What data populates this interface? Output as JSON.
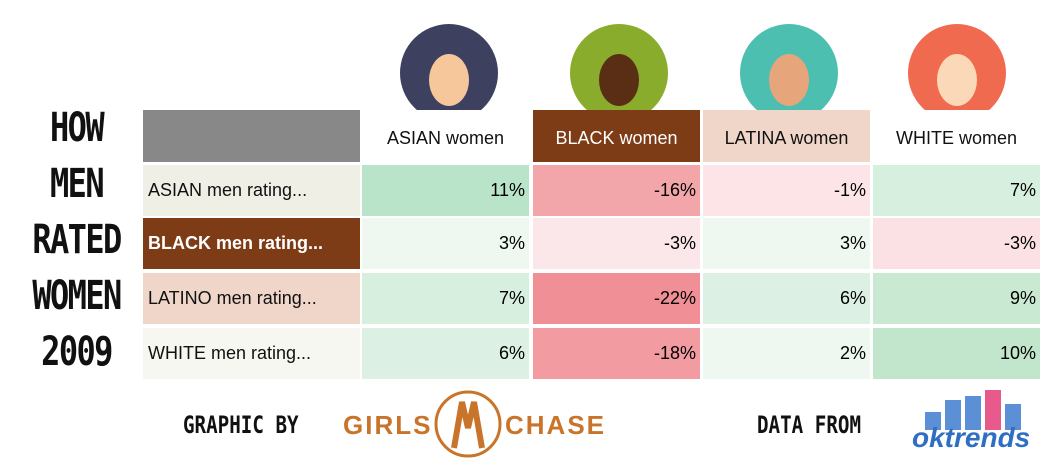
{
  "title": {
    "lines": [
      "HOW",
      "MEN",
      "RATED",
      "WOMEN",
      "2009"
    ]
  },
  "table": {
    "columns": [
      {
        "label": "ASIAN women",
        "bg": "#ffffff",
        "fg": "#111111"
      },
      {
        "label": "BLACK women",
        "bg": "#7d3b16",
        "fg": "#ffffff"
      },
      {
        "label": "LATINA women",
        "bg": "#f0d6c9",
        "fg": "#111111"
      },
      {
        "label": "WHITE women",
        "bg": "#ffffff",
        "fg": "#111111"
      }
    ],
    "rows": [
      {
        "label": "ASIAN men rating...",
        "bg": "#f0efe6",
        "fg": "#111111",
        "cells": [
          "11%",
          "-16%",
          "-1%",
          "7%"
        ],
        "colors": [
          "#b9e4c9",
          "#f2a6a9",
          "#fce4e7",
          "#d7efde"
        ]
      },
      {
        "label": "BLACK men rating...",
        "bg": "#7d3b16",
        "fg": "#ffffff",
        "cells": [
          "3%",
          "-3%",
          "3%",
          "-3%"
        ],
        "colors": [
          "#eef7f0",
          "#fbe6e9",
          "#eef7f0",
          "#fbe0e4"
        ]
      },
      {
        "label": "LATINO men rating...",
        "bg": "#f0d6c9",
        "fg": "#111111",
        "cells": [
          "7%",
          "-22%",
          "6%",
          "9%"
        ],
        "colors": [
          "#d7efde",
          "#f08f95",
          "#dcf1e3",
          "#c9e9d3"
        ]
      },
      {
        "label": "WHITE men rating...",
        "bg": "#f5f7f0",
        "fg": "#111111",
        "cells": [
          "6%",
          "-18%",
          "2%",
          "10%"
        ],
        "colors": [
          "#dcf1e3",
          "#f29ca1",
          "#eef7f0",
          "#c1e6cc"
        ]
      }
    ]
  },
  "footer": {
    "graphic_by": "GRAPHIC BY",
    "logo_left": [
      "GIRLS",
      "CHASE"
    ],
    "data_from": "DATA FROM",
    "logo_right": "oktrends"
  }
}
